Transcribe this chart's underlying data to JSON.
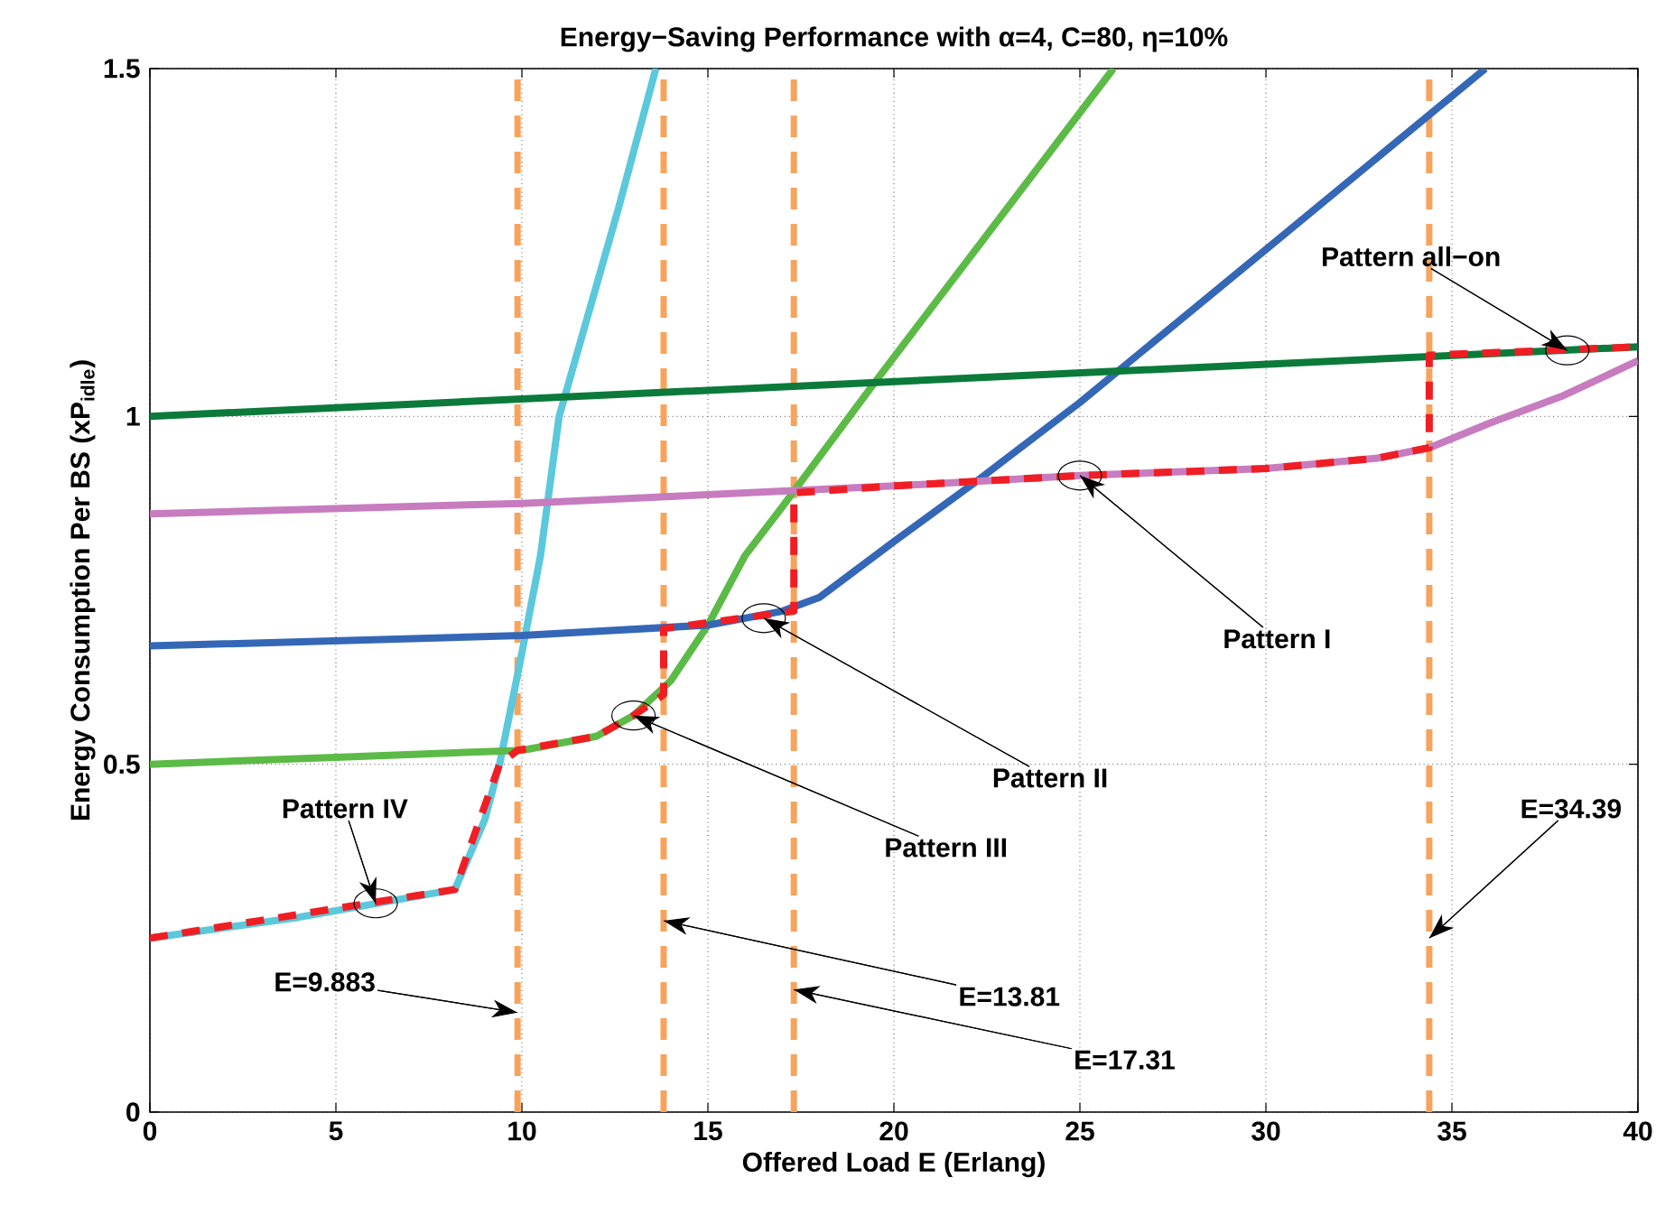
{
  "chart_data": {
    "type": "line",
    "title": "Energy−Saving Performance with α=4, C=80, η=10%",
    "xlabel": "Offered Load E (Erlang)",
    "ylabel": "Energy Consumption Per BS (xP$_{idle}$)",
    "xlim": [
      0,
      40
    ],
    "ylim": [
      0,
      1.5
    ],
    "xticks": [
      0,
      5,
      10,
      15,
      20,
      25,
      30,
      35,
      40
    ],
    "yticks": [
      0,
      0.5,
      1,
      1.5
    ],
    "grid": true,
    "marker": "none",
    "series": [
      {
        "color": "#5bc8dc",
        "x": [
          0,
          4,
          8.2,
          9,
          9.4,
          10,
          10.5,
          11,
          11.8,
          12.6,
          13.6
        ],
        "values": [
          0.25,
          0.28,
          0.32,
          0.42,
          0.5,
          0.66,
          0.8,
          1.0,
          1.15,
          1.3,
          1.5
        ]
      },
      {
        "color": "#5cba47",
        "x": [
          0,
          5,
          10,
          12,
          13,
          14,
          15,
          16,
          17,
          19.5,
          25.9
        ],
        "values": [
          0.5,
          0.51,
          0.52,
          0.54,
          0.57,
          0.62,
          0.7,
          0.8,
          0.87,
          1.05,
          1.5
        ]
      },
      {
        "color": "#3567b7",
        "x": [
          0,
          10,
          15,
          17,
          18,
          20,
          22.3,
          25,
          30,
          35.9
        ],
        "values": [
          0.67,
          0.685,
          0.7,
          0.72,
          0.74,
          0.82,
          0.91,
          1.02,
          1.24,
          1.5
        ]
      },
      {
        "color": "#0b7a3b",
        "x": [
          0,
          40
        ],
        "values": [
          1.0,
          1.1
        ]
      },
      {
        "color": "#c77cbf",
        "x": [
          0,
          10,
          20,
          25,
          30,
          33,
          34.4,
          36,
          38,
          40
        ],
        "values": [
          0.86,
          0.875,
          0.9,
          0.915,
          0.925,
          0.94,
          0.955,
          0.99,
          1.03,
          1.08
        ]
      },
      {
        "color": "#f01e23",
        "line_style": "dashed",
        "x": [
          0,
          8.2,
          9.4,
          9.883,
          12,
          13,
          13.81,
          13.81,
          17.31,
          17.31,
          20,
          25,
          30,
          33,
          34.39,
          34.39,
          40
        ],
        "values": [
          0.25,
          0.32,
          0.5,
          0.52,
          0.54,
          0.57,
          0.6,
          0.695,
          0.72,
          0.89,
          0.9,
          0.915,
          0.925,
          0.94,
          0.955,
          1.088,
          1.1
        ]
      }
    ],
    "ref_lines": [
      {
        "axis": "x",
        "value": 9.883,
        "color": "#f7a35c",
        "line_style": "dashed"
      },
      {
        "axis": "x",
        "value": 13.81,
        "color": "#f7a35c",
        "line_style": "dashed"
      },
      {
        "axis": "x",
        "value": 17.31,
        "color": "#f7a35c",
        "line_style": "dashed"
      },
      {
        "axis": "x",
        "value": 34.39,
        "color": "#f7a35c",
        "line_style": "dashed"
      }
    ],
    "annotations": [
      {
        "text": "Pattern IV",
        "x": 6.07,
        "y": 0.3
      },
      {
        "text": "Pattern III",
        "x": 13,
        "y": 0.57
      },
      {
        "text": "Pattern II",
        "x": 16.5,
        "y": 0.71
      },
      {
        "text": "Pattern I",
        "x": 25,
        "y": 0.915
      },
      {
        "text": "Pattern all−on",
        "x": 38.1,
        "y": 1.095
      },
      {
        "text": "E=9.883",
        "x": 9.883,
        "y": 0.143
      },
      {
        "text": "E=13.81",
        "x": 13.81,
        "y": 0.275
      },
      {
        "text": "E=17.31",
        "x": 17.31,
        "y": 0.176
      },
      {
        "text": "E=34.39",
        "x": 34.39,
        "y": 0.25
      }
    ]
  }
}
